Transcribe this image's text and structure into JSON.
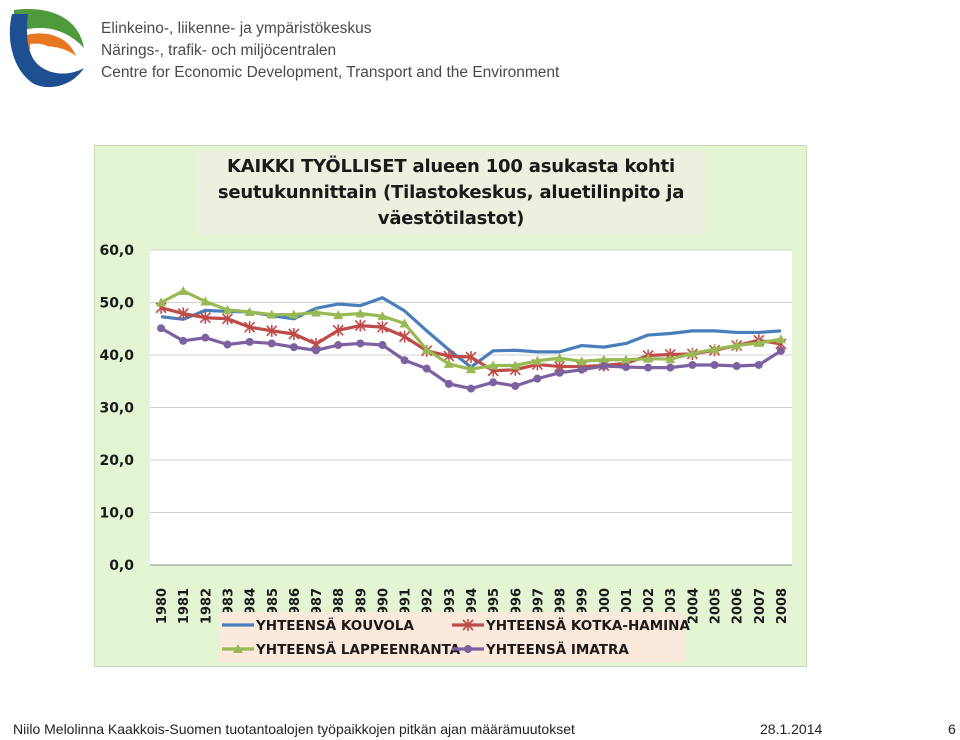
{
  "header": {
    "org_fi": "Elinkeino-, liikenne- ja ympäristökeskus",
    "org_sv": "Närings-, trafik- och miljöcentralen",
    "org_en": "Centre for Economic Development, Transport and the Environment",
    "logo_icon": "ely-centre-logo-icon"
  },
  "chart_data": {
    "type": "line",
    "title": "KAIKKI TYÖLLISET alueen 100 asukasta kohti seutukunnittain (Tilastokeskus, aluetilinpito ja väestötilastot)",
    "title_lines": [
      "KAIKKI TYÖLLISET alueen 100 asukasta kohti",
      "seutukunnittain (Tilastokeskus, aluetilinpito ja",
      "väestötilastot)"
    ],
    "categories": [
      "1980",
      "1981",
      "1982",
      "1983",
      "1984",
      "1985",
      "1986",
      "1987",
      "1988",
      "1989",
      "1990",
      "1991",
      "1992",
      "1993",
      "1994",
      "1995",
      "1996",
      "1997",
      "1998",
      "1999",
      "2000",
      "2001",
      "2002",
      "2003",
      "2004",
      "2005",
      "2006",
      "2007",
      "2008"
    ],
    "ylim": [
      0,
      60
    ],
    "yticks": [
      "0,0",
      "10,0",
      "20,0",
      "30,0",
      "40,0",
      "50,0",
      "60,0"
    ],
    "grid": true,
    "legend_position": "bottom",
    "series": [
      {
        "name": "YHTEENSÄ KOUVOLA",
        "color": "#4a7ebb",
        "marker": "none",
        "values": [
          47.3,
          46.8,
          48.5,
          48.3,
          48.2,
          47.5,
          46.9,
          48.9,
          49.7,
          49.4,
          50.9,
          48.4,
          44.6,
          41.0,
          37.7,
          40.8,
          40.9,
          40.6,
          40.6,
          41.8,
          41.5,
          42.2,
          43.8,
          44.1,
          44.6,
          44.6,
          44.3,
          44.3,
          44.6
        ]
      },
      {
        "name": "YHTEENSÄ KOTKA-HAMINA",
        "color": "#be4b48",
        "marker": "star",
        "values": [
          49.0,
          47.9,
          47.1,
          46.9,
          45.3,
          44.6,
          44.0,
          42.1,
          44.7,
          45.6,
          45.3,
          43.5,
          40.8,
          39.8,
          39.6,
          37.0,
          37.2,
          38.2,
          37.8,
          37.8,
          38.0,
          38.4,
          39.9,
          40.1,
          40.2,
          40.9,
          41.8,
          42.8,
          42.1
        ]
      },
      {
        "name": "YHTEENSÄ LAPPEENRANTA",
        "color": "#98b954",
        "marker": "triangle",
        "values": [
          50.0,
          52.2,
          50.2,
          48.6,
          48.2,
          47.7,
          47.7,
          48.1,
          47.6,
          47.9,
          47.4,
          46.0,
          41.0,
          38.3,
          37.3,
          38.0,
          38.0,
          38.9,
          39.4,
          38.8,
          39.1,
          39.1,
          39.3,
          39.2,
          40.3,
          41.1,
          41.8,
          42.3,
          43.0
        ]
      },
      {
        "name": "YHTEENSÄ IMATRA",
        "color": "#7d60a0",
        "marker": "circle",
        "values": [
          45.1,
          42.7,
          43.3,
          42.0,
          42.5,
          42.2,
          41.5,
          40.9,
          41.9,
          42.2,
          41.9,
          39.0,
          37.4,
          34.5,
          33.6,
          34.8,
          34.1,
          35.5,
          36.6,
          37.2,
          37.9,
          37.7,
          37.6,
          37.6,
          38.1,
          38.1,
          37.9,
          38.1,
          40.8
        ]
      }
    ]
  },
  "footer": {
    "left": "Niilo Melolinna  Kaakkois-Suomen tuotantoalojen työpaikkojen pitkän ajan määrämuutokset",
    "date": "28.1.2014",
    "page": "6"
  }
}
